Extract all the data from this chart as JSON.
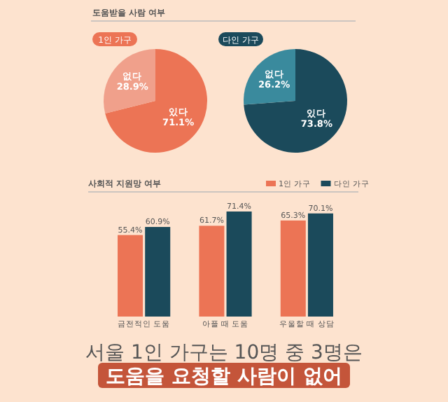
{
  "chart_data": [
    {
      "type": "pie",
      "title": "도움받을 사람 여부",
      "subtitle": "1인 가구",
      "categories": [
        "있다",
        "없다"
      ],
      "values": [
        71.1,
        28.9
      ],
      "colors": [
        "#ec7455",
        "#f0a08b"
      ],
      "value_labels": [
        "71.1%",
        "28.9%"
      ]
    },
    {
      "type": "pie",
      "subtitle": "다인 가구",
      "categories": [
        "있다",
        "없다"
      ],
      "values": [
        73.8,
        26.2
      ],
      "colors": [
        "#1b4a5b",
        "#3a8a9d"
      ],
      "value_labels": [
        "73.8%",
        "26.2%"
      ]
    },
    {
      "type": "bar",
      "title": "사회적 지원망 여부",
      "categories": [
        "금전적인 도움",
        "아플 때 도움",
        "우울할 때 상담"
      ],
      "legend": "top right",
      "series": [
        {
          "name": "1인 가구",
          "color": "#ec7455",
          "values": [
            55.4,
            61.7,
            65.3
          ],
          "value_labels": [
            "55.4%",
            "61.7%",
            "65.3%"
          ]
        },
        {
          "name": "다인 가구",
          "color": "#1b4a5b",
          "values": [
            60.9,
            71.4,
            70.1
          ],
          "value_labels": [
            "60.9%",
            "71.4%",
            "70.1%"
          ]
        }
      ],
      "annotations": [
        "서울 1인 가구는 10명 중 3명은",
        "도움을 요청할 사람이 없어"
      ]
    }
  ]
}
